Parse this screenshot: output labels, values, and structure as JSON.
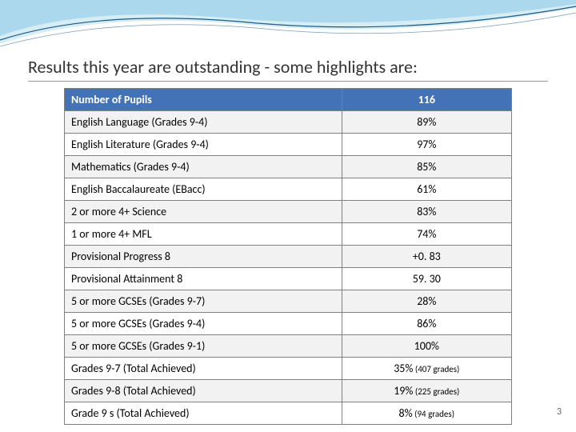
{
  "wave": {
    "fill1": "#8ecae6",
    "fill2": "#c5e5f0",
    "stroke": "#1a5a8a"
  },
  "title": "Results this year are outstanding - some highlights are:",
  "table": {
    "header": {
      "label": "Number of Pupils",
      "value": "116"
    },
    "header_bg": "#4472b7",
    "header_fg": "#ffffff",
    "alt_bg": "#f2f2f2",
    "rows": [
      {
        "label": "English Language (Grades 9-4)",
        "value": "89%"
      },
      {
        "label": "English Literature (Grades 9-4)",
        "value": "97%"
      },
      {
        "label": "Mathematics (Grades 9-4)",
        "value": "85%"
      },
      {
        "label": "English Baccalaureate (EBacc)",
        "value": "61%"
      },
      {
        "label": "2 or more 4+ Science",
        "value": "83%"
      },
      {
        "label": "1 or more 4+ MFL",
        "value": "74%"
      },
      {
        "label": "Provisional Progress 8",
        "value": "+0. 83"
      },
      {
        "label": "Provisional Attainment 8",
        "value": "59. 30"
      },
      {
        "label": "5 or more GCSEs (Grades 9-7)",
        "value": "28%"
      },
      {
        "label": "5 or more GCSEs (Grades 9-4)",
        "value": "86%"
      },
      {
        "label": "5 or more GCSEs (Grades 9-1)",
        "value": "100%"
      },
      {
        "label": "Grades 9-7 (Total Achieved)",
        "value": "35%",
        "sub": " (407 grades)"
      },
      {
        "label": "Grades 9-8 (Total Achieved)",
        "value": "19%",
        "sub": " (225 grades)"
      },
      {
        "label": "Grade 9 s (Total Achieved)",
        "value": "8%",
        "sub": " (94 grades)"
      }
    ]
  },
  "page_number": "3"
}
